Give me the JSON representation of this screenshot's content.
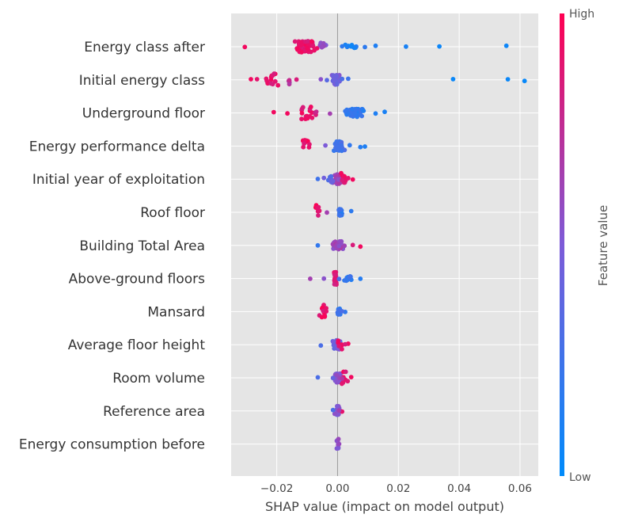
{
  "chart_data": {
    "type": "scatter",
    "subtype": "shap-beeswarm",
    "xlabel": "SHAP value (impact on model output)",
    "xlim": [
      -0.035,
      0.066
    ],
    "xticks": [
      -0.02,
      0.0,
      0.02,
      0.04,
      0.06
    ],
    "xtick_labels": [
      "−0.02",
      "0.00",
      "0.02",
      "0.04",
      "0.06"
    ],
    "grid": true,
    "zero_line": 0.0,
    "colorbar": {
      "title": "Feature value",
      "high_label": "High",
      "low_label": "Low",
      "low_color": "#008bfb",
      "high_color": "#ff0052"
    },
    "features": [
      {
        "name": "Energy class after",
        "clusters": [
          {
            "c": -0.0105,
            "w": 0.0045,
            "h": 0.9,
            "n": 70,
            "s": 7
          },
          {
            "c": 0.005,
            "w": 0.004,
            "h": 0.12,
            "n": 11,
            "s": 3
          },
          {
            "c": -0.005,
            "w": 0.0015,
            "h": 0.55,
            "n": 6,
            "s": 5
          }
        ],
        "points": [
          [
            -0.0305,
            0.95
          ],
          [
            0.0015,
            0.18
          ],
          [
            0.009,
            0.18
          ],
          [
            0.0125,
            0.12
          ],
          [
            0.0225,
            0.1
          ],
          [
            0.0335,
            0.05
          ],
          [
            0.0555,
            0.05
          ]
        ]
      },
      {
        "name": "Initial energy class",
        "clusters": [
          {
            "c": -0.0005,
            "w": 0.002,
            "h": 0.45,
            "n": 40,
            "s": 6
          },
          {
            "c": -0.022,
            "w": 0.0035,
            "h": 0.9,
            "n": 14,
            "s": 8
          },
          {
            "c": -0.0155,
            "w": 0.0025,
            "h": 0.75,
            "n": 4,
            "s": 6
          }
        ],
        "points": [
          [
            -0.0285,
            0.95
          ],
          [
            -0.0265,
            0.9
          ],
          [
            -0.0135,
            0.85
          ],
          [
            -0.0055,
            0.55
          ],
          [
            -0.0035,
            0.35
          ],
          [
            0.0015,
            0.3
          ],
          [
            0.0035,
            0.25
          ],
          [
            0.038,
            0.04
          ],
          [
            0.056,
            0.04
          ],
          [
            0.0615,
            0.03
          ]
        ]
      },
      {
        "name": "Underground floor",
        "clusters": [
          {
            "c": 0.0055,
            "w": 0.0045,
            "h": 0.18,
            "n": 45,
            "s": 5
          },
          {
            "c": -0.0095,
            "w": 0.0035,
            "h": 0.9,
            "n": 18,
            "s": 8
          }
        ],
        "points": [
          [
            -0.021,
            0.95
          ],
          [
            -0.0165,
            0.95
          ],
          [
            -0.007,
            0.78
          ],
          [
            -0.0025,
            0.65
          ],
          [
            0.0125,
            0.12
          ],
          [
            0.0155,
            0.1
          ]
        ]
      },
      {
        "name": "Energy performance delta",
        "clusters": [
          {
            "c": 0.0005,
            "w": 0.002,
            "h": 0.28,
            "n": 42,
            "s": 6
          },
          {
            "c": -0.0105,
            "w": 0.0022,
            "h": 0.92,
            "n": 10,
            "s": 9
          }
        ],
        "points": [
          [
            -0.004,
            0.5
          ],
          [
            0.004,
            0.2
          ],
          [
            0.0075,
            0.15
          ],
          [
            0.009,
            0.12
          ]
        ]
      },
      {
        "name": "Initial year of exploitation",
        "clusters": [
          {
            "c": 0.0002,
            "w": 0.0025,
            "h": 0.65,
            "n": 30,
            "s": 6
          },
          {
            "c": 0.002,
            "w": 0.001,
            "h": 0.9,
            "n": 10,
            "s": 8
          },
          {
            "c": -0.002,
            "w": 0.002,
            "h": 0.35,
            "n": 8,
            "s": 4
          }
        ],
        "points": [
          [
            -0.0065,
            0.25
          ],
          [
            0.005,
            0.95
          ],
          [
            0.0005,
            0.55
          ],
          [
            0.0015,
            0.85
          ],
          [
            0.0035,
            0.9
          ],
          [
            -0.0045,
            0.45
          ]
        ]
      },
      {
        "name": "Roof floor",
        "clusters": [
          {
            "c": 0.001,
            "w": 0.0007,
            "h": 0.22,
            "n": 34,
            "s": 4
          },
          {
            "c": -0.0065,
            "w": 0.0018,
            "h": 0.92,
            "n": 9,
            "s": 9
          }
        ],
        "points": [
          [
            0.0045,
            0.18
          ],
          [
            -0.0035,
            0.65
          ]
        ]
      },
      {
        "name": "Building Total Area",
        "clusters": [
          {
            "c": 0.0,
            "w": 0.003,
            "h": 0.62,
            "n": 44,
            "s": 5
          }
        ],
        "points": [
          [
            -0.0065,
            0.2
          ],
          [
            0.0075,
            0.95
          ],
          [
            0.005,
            0.85
          ],
          [
            0.0005,
            0.55
          ]
        ]
      },
      {
        "name": "Above-ground floors",
        "clusters": [
          {
            "c": -0.0008,
            "w": 0.0006,
            "h": 0.88,
            "n": 34,
            "s": 8
          },
          {
            "c": 0.0035,
            "w": 0.0018,
            "h": 0.2,
            "n": 14,
            "s": 3
          }
        ],
        "points": [
          [
            -0.009,
            0.65
          ],
          [
            0.0075,
            0.15
          ],
          [
            -0.0045,
            0.55
          ],
          [
            0.0005,
            0.3
          ]
        ]
      },
      {
        "name": "Mansard",
        "clusters": [
          {
            "c": 0.0005,
            "w": 0.0007,
            "h": 0.22,
            "n": 28,
            "s": 4
          },
          {
            "c": -0.0045,
            "w": 0.0018,
            "h": 0.92,
            "n": 12,
            "s": 9
          }
        ],
        "points": [
          [
            0.0025,
            0.2
          ],
          [
            0.0015,
            0.3
          ]
        ]
      },
      {
        "name": "Average floor height",
        "clusters": [
          {
            "c": -0.0005,
            "w": 0.002,
            "h": 0.45,
            "n": 36,
            "s": 6
          },
          {
            "c": 0.001,
            "w": 0.0012,
            "h": 0.9,
            "n": 6,
            "s": 8
          }
        ],
        "points": [
          [
            -0.0055,
            0.3
          ],
          [
            0.0035,
            0.95
          ],
          [
            0.0025,
            0.85
          ]
        ]
      },
      {
        "name": "Room volume",
        "clusters": [
          {
            "c": 0.0,
            "w": 0.002,
            "h": 0.55,
            "n": 32,
            "s": 6
          },
          {
            "c": 0.0025,
            "w": 0.0012,
            "h": 0.9,
            "n": 8,
            "s": 8
          }
        ],
        "points": [
          [
            -0.0065,
            0.3
          ],
          [
            0.0045,
            0.95
          ],
          [
            0.0015,
            0.7
          ],
          [
            -0.0015,
            0.4
          ]
        ]
      },
      {
        "name": "Reference area",
        "clusters": [
          {
            "c": 0.0,
            "w": 0.001,
            "h": 0.5,
            "n": 14,
            "s": 7
          }
        ],
        "points": [
          [
            -0.0015,
            0.3
          ],
          [
            0.0015,
            0.9
          ],
          [
            0.0005,
            0.65
          ]
        ]
      },
      {
        "name": "Energy consumption before",
        "clusters": [
          {
            "c": 0.0,
            "w": 0.0005,
            "h": 0.55,
            "n": 9,
            "s": 8
          }
        ],
        "points": [
          [
            0.0005,
            0.6
          ]
        ]
      }
    ]
  }
}
